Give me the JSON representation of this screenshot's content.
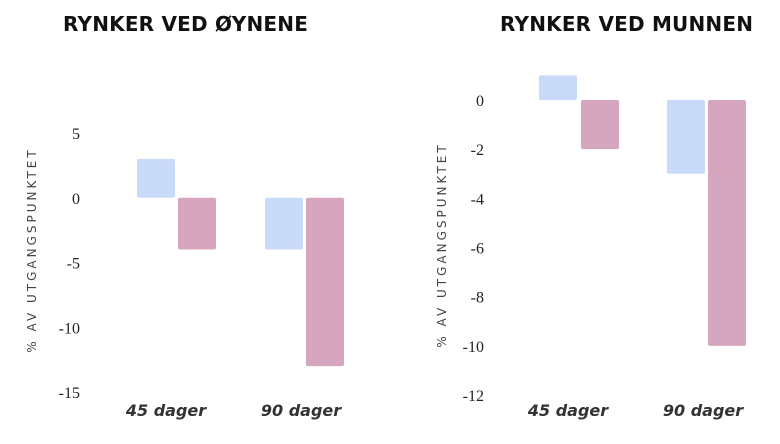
{
  "chart_data": [
    {
      "type": "bar",
      "title": "RYNKER VED ØYNENE",
      "ylabel": "% AV UTGANGSPUNKTET",
      "categories": [
        "45 dager",
        "90 dager"
      ],
      "series": [
        {
          "color": "#c9daf8",
          "values": [
            3,
            -4
          ]
        },
        {
          "color": "#d5a6bd",
          "values": [
            -4,
            -13
          ]
        }
      ],
      "yticks": [
        5,
        0,
        -5,
        -10,
        -15
      ],
      "ylim": [
        -15,
        5
      ]
    },
    {
      "type": "bar",
      "title": "RYNKER VED MUNNEN",
      "ylabel": "% AV UTGANGSPUNKTET",
      "categories": [
        "45 dager",
        "90 dager"
      ],
      "series": [
        {
          "color": "#c9daf8",
          "values": [
            1,
            -3
          ]
        },
        {
          "color": "#d5a6bd",
          "values": [
            -2,
            -10
          ]
        }
      ],
      "yticks": [
        0,
        -2,
        -4,
        -6,
        -8,
        -10,
        -12
      ],
      "ylim": [
        -12,
        0
      ]
    }
  ]
}
